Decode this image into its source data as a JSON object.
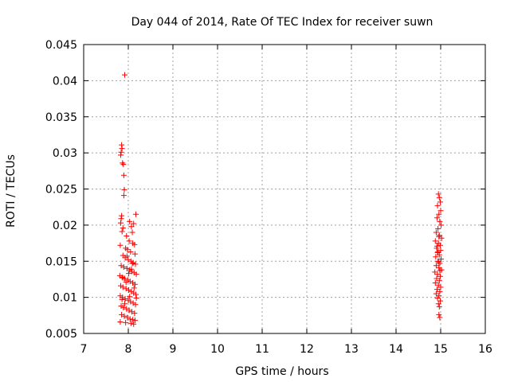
{
  "chart_data": {
    "type": "scatter",
    "title": "Day 044 of 2014, Rate Of TEC Index for receiver suwn",
    "xlabel": "GPS time / hours",
    "ylabel": "ROTI / TECUs",
    "xlim": [
      7,
      16
    ],
    "ylim": [
      0.005,
      0.045
    ],
    "xticks": [
      "7",
      "8",
      "9",
      "10",
      "11",
      "12",
      "13",
      "14",
      "15",
      "16"
    ],
    "yticks": [
      "0.005",
      "0.01",
      "0.015",
      "0.02",
      "0.025",
      "0.03",
      "0.035",
      "0.04",
      "0.045"
    ],
    "grid": true,
    "marker": "+",
    "color": "#ff0000",
    "series": [
      {
        "name": "ROTI",
        "points": [
          [
            7.92,
            0.0408
          ],
          [
            7.85,
            0.0311
          ],
          [
            7.86,
            0.0306
          ],
          [
            7.84,
            0.0301
          ],
          [
            7.83,
            0.0297
          ],
          [
            7.87,
            0.0286
          ],
          [
            7.89,
            0.0284
          ],
          [
            7.9,
            0.0269
          ],
          [
            7.91,
            0.0249
          ],
          [
            7.9,
            0.0241
          ],
          [
            7.85,
            0.0213
          ],
          [
            7.84,
            0.0209
          ],
          [
            7.83,
            0.0203
          ],
          [
            7.88,
            0.0196
          ],
          [
            7.86,
            0.0191
          ],
          [
            8.03,
            0.0205
          ],
          [
            8.07,
            0.0198
          ],
          [
            8.12,
            0.0202
          ],
          [
            8.17,
            0.0215
          ],
          [
            8.09,
            0.019
          ],
          [
            7.96,
            0.0185
          ],
          [
            8.02,
            0.0178
          ],
          [
            8.1,
            0.0175
          ],
          [
            8.14,
            0.0173
          ],
          [
            7.94,
            0.0168
          ],
          [
            7.98,
            0.0166
          ],
          [
            8.05,
            0.0163
          ],
          [
            8.15,
            0.016
          ],
          [
            7.82,
            0.0172
          ],
          [
            7.88,
            0.0158
          ],
          [
            7.93,
            0.0155
          ],
          [
            8.0,
            0.0152
          ],
          [
            8.06,
            0.015
          ],
          [
            8.11,
            0.0148
          ],
          [
            8.16,
            0.0146
          ],
          [
            7.84,
            0.0144
          ],
          [
            7.9,
            0.0142
          ],
          [
            7.97,
            0.014
          ],
          [
            8.03,
            0.0138
          ],
          [
            8.08,
            0.0136
          ],
          [
            8.13,
            0.0134
          ],
          [
            8.18,
            0.0132
          ],
          [
            7.81,
            0.013
          ],
          [
            7.86,
            0.0128
          ],
          [
            7.92,
            0.0126
          ],
          [
            7.99,
            0.0124
          ],
          [
            8.04,
            0.0122
          ],
          [
            8.1,
            0.012
          ],
          [
            8.15,
            0.0118
          ],
          [
            7.83,
            0.0116
          ],
          [
            7.88,
            0.0114
          ],
          [
            7.95,
            0.0112
          ],
          [
            8.01,
            0.011
          ],
          [
            8.07,
            0.0108
          ],
          [
            8.12,
            0.0106
          ],
          [
            8.17,
            0.0104
          ],
          [
            7.82,
            0.0102
          ],
          [
            7.87,
            0.01
          ],
          [
            7.93,
            0.0098
          ],
          [
            8.0,
            0.0096
          ],
          [
            8.05,
            0.0094
          ],
          [
            8.11,
            0.0092
          ],
          [
            8.16,
            0.009
          ],
          [
            7.84,
            0.0088
          ],
          [
            7.89,
            0.0086
          ],
          [
            7.96,
            0.0084
          ],
          [
            8.02,
            0.0082
          ],
          [
            8.08,
            0.008
          ],
          [
            8.14,
            0.0078
          ],
          [
            7.85,
            0.0076
          ],
          [
            7.91,
            0.0074
          ],
          [
            7.98,
            0.0072
          ],
          [
            8.04,
            0.007
          ],
          [
            8.1,
            0.0069
          ],
          [
            8.15,
            0.0068
          ],
          [
            7.82,
            0.0066
          ],
          [
            7.94,
            0.0065
          ],
          [
            8.06,
            0.0064
          ],
          [
            8.12,
            0.0063
          ],
          [
            8.09,
            0.0147
          ],
          [
            7.97,
            0.0157
          ],
          [
            8.01,
            0.0133
          ],
          [
            7.95,
            0.0121
          ],
          [
            8.13,
            0.0113
          ],
          [
            7.86,
            0.0097
          ],
          [
            8.18,
            0.0099
          ],
          [
            7.92,
            0.0091
          ],
          [
            8.03,
            0.0101
          ],
          [
            7.88,
            0.0127
          ],
          [
            8.07,
            0.0139
          ],
          [
            14.95,
            0.0243
          ],
          [
            14.97,
            0.0238
          ],
          [
            14.99,
            0.0232
          ],
          [
            14.93,
            0.0227
          ],
          [
            15.0,
            0.022
          ],
          [
            14.96,
            0.0215
          ],
          [
            14.92,
            0.021
          ],
          [
            14.98,
            0.0205
          ],
          [
            15.01,
            0.02
          ],
          [
            14.94,
            0.0195
          ],
          [
            14.9,
            0.019
          ],
          [
            14.97,
            0.0186
          ],
          [
            15.02,
            0.0182
          ],
          [
            14.88,
            0.0178
          ],
          [
            14.95,
            0.0175
          ],
          [
            14.99,
            0.0172
          ],
          [
            14.91,
            0.0168
          ],
          [
            15.0,
            0.0165
          ],
          [
            14.93,
            0.0162
          ],
          [
            14.97,
            0.0159
          ],
          [
            14.89,
            0.0156
          ],
          [
            15.01,
            0.0153
          ],
          [
            14.94,
            0.015
          ],
          [
            14.98,
            0.0147
          ],
          [
            14.9,
            0.0144
          ],
          [
            14.96,
            0.0141
          ],
          [
            15.02,
            0.0138
          ],
          [
            14.87,
            0.0135
          ],
          [
            14.93,
            0.0132
          ],
          [
            14.99,
            0.0129
          ],
          [
            14.91,
            0.0126
          ],
          [
            14.97,
            0.0123
          ],
          [
            14.88,
            0.012
          ],
          [
            14.95,
            0.0117
          ],
          [
            15.0,
            0.0114
          ],
          [
            14.92,
            0.0111
          ],
          [
            14.98,
            0.0108
          ],
          [
            14.9,
            0.0105
          ],
          [
            14.96,
            0.0102
          ],
          [
            14.93,
            0.0099
          ],
          [
            14.99,
            0.0095
          ],
          [
            14.95,
            0.0091
          ],
          [
            14.97,
            0.0087
          ],
          [
            14.96,
            0.0076
          ],
          [
            14.98,
            0.0072
          ],
          [
            14.94,
            0.0163
          ],
          [
            14.92,
            0.0171
          ],
          [
            14.96,
            0.0184
          ],
          [
            14.95,
            0.0149
          ],
          [
            14.98,
            0.0137
          ]
        ]
      }
    ]
  }
}
